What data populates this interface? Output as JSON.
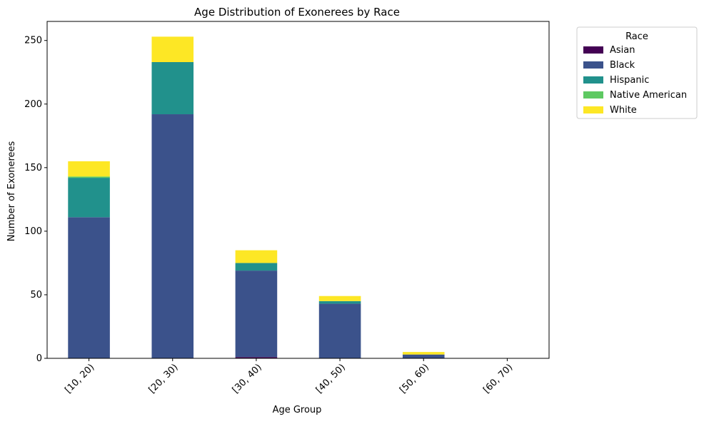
{
  "chart_data": {
    "type": "bar",
    "stacked": true,
    "title": "Age Distribution of Exonerees by Race",
    "xlabel": "Age Group",
    "ylabel": "Number of Exonerees",
    "categories": [
      "[10, 20)",
      "[20, 30)",
      "[30, 40)",
      "[40, 50)",
      "[50, 60)",
      "[60, 70)"
    ],
    "ylim": [
      0,
      265
    ],
    "yticks": [
      0,
      50,
      100,
      150,
      200,
      250
    ],
    "grid": false,
    "legend_title": "Race",
    "legend_position": "outside-top-right",
    "series": [
      {
        "name": "Asian",
        "color": "#440154",
        "values": [
          0,
          0,
          1,
          0,
          0,
          0
        ]
      },
      {
        "name": "Black",
        "color": "#3b528b",
        "values": [
          111,
          192,
          68,
          43,
          3,
          0
        ]
      },
      {
        "name": "Hispanic",
        "color": "#21918c",
        "values": [
          31,
          41,
          6,
          2,
          0,
          0
        ]
      },
      {
        "name": "Native American",
        "color": "#5ec962",
        "values": [
          1,
          0,
          0,
          0,
          0,
          0
        ]
      },
      {
        "name": "White",
        "color": "#fde725",
        "values": [
          12,
          20,
          10,
          4,
          2,
          0
        ]
      }
    ]
  }
}
